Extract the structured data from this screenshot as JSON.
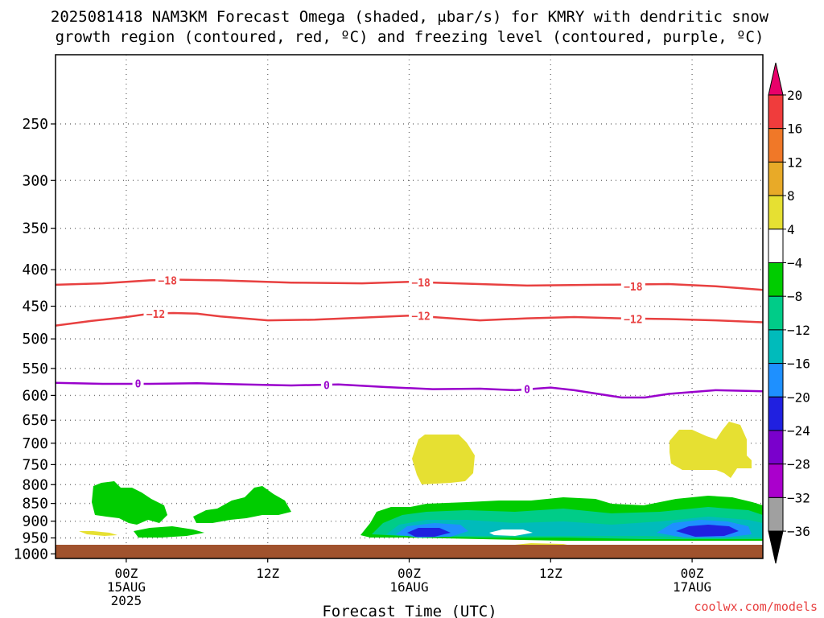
{
  "chart_data": {
    "type": "heatmap",
    "title_line1": "2025081418 NAM3KM Forecast Omega (shaded, μbar/s) for KMRY with dendritic snow",
    "title_line2": "growth region (contoured, red, ºC) and freezing level (contoured, purple, ºC)",
    "xlabel": "Forecast Time (UTC)",
    "ylabel": "",
    "credit": "coolwx.com/models",
    "x_ticks": [
      {
        "hour": 6,
        "label1": "00Z",
        "label2": "15AUG",
        "label3": "2025"
      },
      {
        "hour": 18,
        "label1": "12Z",
        "label2": "",
        "label3": ""
      },
      {
        "hour": 30,
        "label1": "00Z",
        "label2": "16AUG",
        "label3": ""
      },
      {
        "hour": 42,
        "label1": "12Z",
        "label2": "",
        "label3": ""
      },
      {
        "hour": 54,
        "label1": "00Z",
        "label2": "17AUG",
        "label3": ""
      }
    ],
    "xlim": [
      0,
      60
    ],
    "y_ticks": [
      250,
      300,
      350,
      400,
      450,
      500,
      550,
      600,
      650,
      700,
      750,
      800,
      850,
      900,
      950,
      1000
    ],
    "ylim": [
      1015,
      200
    ],
    "y_scale": "log-pressure",
    "grid": "dotted",
    "colorbar": {
      "levels": [
        "20",
        "16",
        "12",
        "8",
        "4",
        "−4",
        "−8",
        "−12",
        "−16",
        "−20",
        "−24",
        "−28",
        "−32",
        "−36"
      ],
      "colors": [
        "#e8006a",
        "#f03c3c",
        "#f07828",
        "#e8aa28",
        "#e6e032",
        "#ffffff",
        "#00cc00",
        "#00cc88",
        "#00bbbb",
        "#1e90ff",
        "#2020e0",
        "#7a00cc",
        "#aa00cc",
        "#a0a0a0",
        "#000000"
      ]
    },
    "contours": [
      {
        "color": "#e84040",
        "label": "−18",
        "points": [
          [
            0,
            420
          ],
          [
            4,
            418
          ],
          [
            6,
            416
          ],
          [
            8,
            414
          ],
          [
            10,
            413
          ],
          [
            14,
            414
          ],
          [
            20,
            417
          ],
          [
            26,
            418
          ],
          [
            30,
            416
          ],
          [
            34,
            418
          ],
          [
            40,
            421
          ],
          [
            46,
            420
          ],
          [
            52,
            419
          ],
          [
            56,
            422
          ],
          [
            60,
            427
          ]
        ],
        "labels": [
          [
            9.5,
            414
          ],
          [
            31,
            417
          ],
          [
            49,
            422
          ]
        ]
      },
      {
        "color": "#e84040",
        "label": "−12",
        "points": [
          [
            0,
            479
          ],
          [
            3,
            472
          ],
          [
            6,
            466
          ],
          [
            8,
            461
          ],
          [
            10,
            460
          ],
          [
            12,
            461
          ],
          [
            14,
            465
          ],
          [
            18,
            471
          ],
          [
            22,
            470
          ],
          [
            26,
            467
          ],
          [
            30,
            464
          ],
          [
            32,
            466
          ],
          [
            36,
            471
          ],
          [
            40,
            468
          ],
          [
            44,
            466
          ],
          [
            48,
            468
          ],
          [
            52,
            469
          ],
          [
            56,
            471
          ],
          [
            60,
            474
          ]
        ],
        "labels": [
          [
            8.5,
            461
          ],
          [
            31,
            464
          ],
          [
            49,
            469
          ]
        ]
      },
      {
        "color": "#9900cc",
        "label": "0",
        "points": [
          [
            0,
            576
          ],
          [
            4,
            578
          ],
          [
            8,
            578
          ],
          [
            12,
            577
          ],
          [
            16,
            579
          ],
          [
            20,
            581
          ],
          [
            24,
            579
          ],
          [
            28,
            584
          ],
          [
            32,
            588
          ],
          [
            36,
            587
          ],
          [
            39,
            590
          ],
          [
            42,
            585
          ],
          [
            44,
            590
          ],
          [
            48,
            604
          ],
          [
            50,
            604
          ],
          [
            52,
            597
          ],
          [
            56,
            590
          ],
          [
            60,
            592
          ]
        ],
        "labels": [
          [
            7,
            577
          ],
          [
            23,
            580
          ],
          [
            40,
            588
          ]
        ]
      }
    ]
  }
}
